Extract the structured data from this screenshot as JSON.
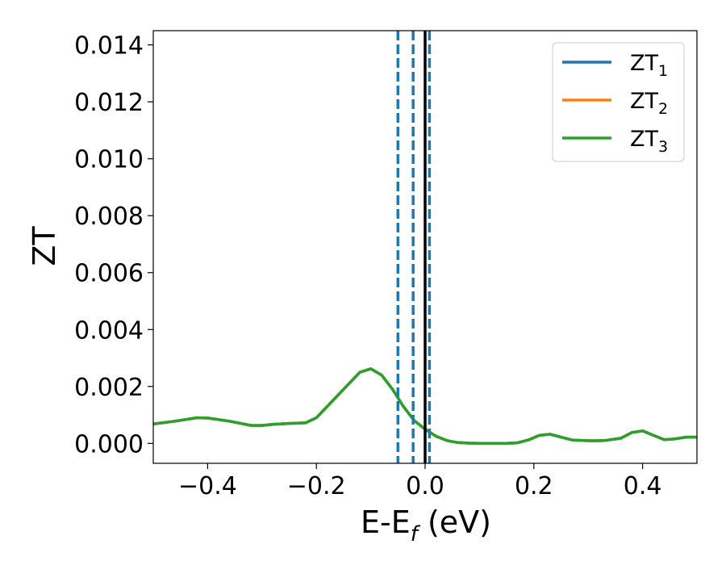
{
  "chart_data": {
    "type": "line",
    "title": "",
    "xlabel": {
      "main": "E-E",
      "sub": "f",
      "suffix": " (eV)"
    },
    "ylabel": "ZT",
    "xlim": [
      -0.5,
      0.5
    ],
    "ylim": [
      -0.0007,
      0.0145
    ],
    "grid": false,
    "legend_position": "top-right",
    "x_ticks": [
      -0.4,
      -0.2,
      0.0,
      0.2,
      0.4
    ],
    "x_tick_labels": [
      "−0.4",
      "−0.2",
      "0.0",
      "0.2",
      "0.4"
    ],
    "y_ticks": [
      0.0,
      0.002,
      0.004,
      0.006,
      0.008,
      0.01,
      0.012,
      0.014
    ],
    "y_tick_labels": [
      "0.000",
      "0.002",
      "0.004",
      "0.006",
      "0.008",
      "0.010",
      "0.012",
      "0.014"
    ],
    "x": [
      -0.5,
      -0.46,
      -0.42,
      -0.4,
      -0.36,
      -0.32,
      -0.3,
      -0.28,
      -0.25,
      -0.22,
      -0.2,
      -0.18,
      -0.15,
      -0.12,
      -0.1,
      -0.08,
      -0.06,
      -0.04,
      -0.02,
      0.0,
      0.02,
      0.04,
      0.06,
      0.08,
      0.1,
      0.12,
      0.15,
      0.17,
      0.19,
      0.21,
      0.23,
      0.25,
      0.27,
      0.29,
      0.31,
      0.33,
      0.36,
      0.38,
      0.4,
      0.42,
      0.44,
      0.46,
      0.48,
      0.5
    ],
    "series": [
      {
        "name": {
          "main": "ZT",
          "sub": "1"
        },
        "color": "#1f77b4",
        "y": [
          0.00068,
          0.00078,
          0.0009,
          0.00089,
          0.00078,
          0.00063,
          0.00063,
          0.00067,
          0.0007,
          0.00072,
          0.0009,
          0.0013,
          0.0019,
          0.0025,
          0.00262,
          0.0024,
          0.0019,
          0.0013,
          0.0008,
          0.0005,
          0.00025,
          0.0001,
          3e-05,
          1e-05,
          0.0,
          0.0,
          0.0,
          2e-05,
          0.00012,
          0.00028,
          0.00032,
          0.00022,
          0.00012,
          0.0001,
          9e-05,
          0.0001,
          0.00018,
          0.00038,
          0.00044,
          0.00028,
          0.00013,
          0.00016,
          0.00022,
          0.00022
        ]
      },
      {
        "name": {
          "main": "ZT",
          "sub": "2"
        },
        "color": "#ff7f0e",
        "y": [
          0.00068,
          0.00078,
          0.0009,
          0.00089,
          0.00078,
          0.00063,
          0.00063,
          0.00067,
          0.0007,
          0.00072,
          0.0009,
          0.0013,
          0.0019,
          0.0025,
          0.00262,
          0.0024,
          0.0019,
          0.0013,
          0.0008,
          0.0005,
          0.00025,
          0.0001,
          3e-05,
          1e-05,
          0.0,
          0.0,
          0.0,
          2e-05,
          0.00012,
          0.00028,
          0.00032,
          0.00022,
          0.00012,
          0.0001,
          9e-05,
          0.0001,
          0.00018,
          0.00038,
          0.00044,
          0.00028,
          0.00013,
          0.00016,
          0.00022,
          0.00022
        ]
      },
      {
        "name": {
          "main": "ZT",
          "sub": "3"
        },
        "color": "#2ca02c",
        "y": [
          0.00068,
          0.00078,
          0.0009,
          0.00089,
          0.00078,
          0.00063,
          0.00063,
          0.00067,
          0.0007,
          0.00072,
          0.0009,
          0.0013,
          0.0019,
          0.0025,
          0.00262,
          0.0024,
          0.0019,
          0.0013,
          0.0008,
          0.0005,
          0.00025,
          0.0001,
          3e-05,
          1e-05,
          0.0,
          0.0,
          0.0,
          2e-05,
          0.00012,
          0.00028,
          0.00032,
          0.00022,
          0.00012,
          0.0001,
          9e-05,
          0.0001,
          0.00018,
          0.00038,
          0.00044,
          0.00028,
          0.00013,
          0.00016,
          0.00022,
          0.00022
        ]
      }
    ],
    "vertical_lines": [
      {
        "x": -0.05,
        "style": "dashed",
        "color": "#1f77b4"
      },
      {
        "x": -0.022,
        "style": "dashed",
        "color": "#1f77b4"
      },
      {
        "x": 0.008,
        "style": "dashed",
        "color": "#1f77b4"
      },
      {
        "x": 0.0,
        "style": "solid",
        "color": "#000000"
      }
    ]
  }
}
